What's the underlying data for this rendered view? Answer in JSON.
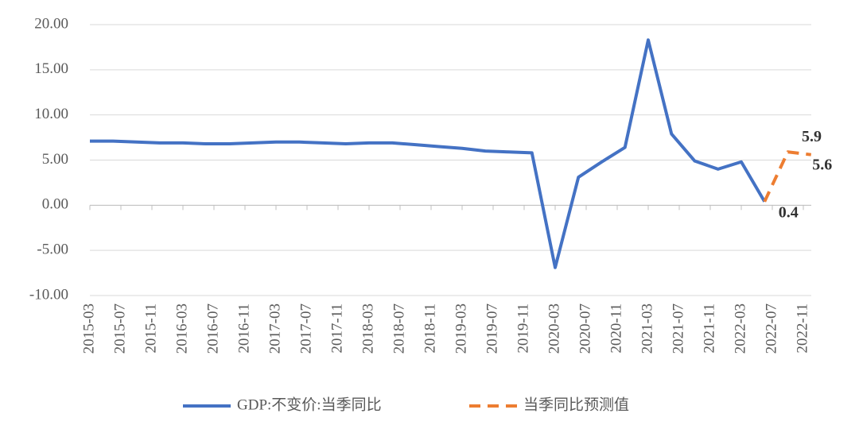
{
  "chart_data": {
    "type": "line",
    "series": [
      {
        "name": "GDP:不变价:当季同比",
        "color": "#4472c4",
        "dashed": false,
        "x": [
          "2015-03",
          "2015-06",
          "2015-09",
          "2015-12",
          "2016-03",
          "2016-06",
          "2016-09",
          "2016-12",
          "2017-03",
          "2017-06",
          "2017-09",
          "2017-12",
          "2018-03",
          "2018-06",
          "2018-09",
          "2018-12",
          "2019-03",
          "2019-06",
          "2019-09",
          "2019-12",
          "2020-03",
          "2020-06",
          "2020-09",
          "2020-12",
          "2021-03",
          "2021-06",
          "2021-09",
          "2021-12",
          "2022-03",
          "2022-06"
        ],
        "values": [
          7.1,
          7.1,
          7.0,
          6.9,
          6.9,
          6.8,
          6.8,
          6.9,
          7.0,
          7.0,
          6.9,
          6.8,
          6.9,
          6.9,
          6.7,
          6.5,
          6.3,
          6.0,
          5.9,
          5.8,
          -6.9,
          3.1,
          4.8,
          6.4,
          18.3,
          7.9,
          4.9,
          4.0,
          4.8,
          0.4
        ]
      },
      {
        "name": "当季同比预测值",
        "color": "#ed7d31",
        "dashed": true,
        "show_labels": true,
        "x": [
          "2022-06",
          "2022-09",
          "2022-12"
        ],
        "values": [
          0.4,
          5.9,
          5.6
        ]
      }
    ],
    "xticks": [
      "2015-03",
      "2015-07",
      "2015-11",
      "2016-03",
      "2016-07",
      "2016-11",
      "2017-03",
      "2017-07",
      "2017-11",
      "2018-03",
      "2018-07",
      "2018-11",
      "2019-03",
      "2019-07",
      "2019-11",
      "2020-03",
      "2020-07",
      "2020-11",
      "2021-03",
      "2021-07",
      "2021-11",
      "2022-03",
      "2022-07",
      "2022-11"
    ],
    "ylim": [
      -10,
      20
    ],
    "yticks": [
      {
        "value": -10,
        "label": "-10.00"
      },
      {
        "value": -5,
        "label": "-5.00"
      },
      {
        "value": 0,
        "label": "0.00"
      },
      {
        "value": 5,
        "label": "5.00"
      },
      {
        "value": 10,
        "label": "10.00"
      },
      {
        "value": 15,
        "label": "15.00"
      },
      {
        "value": 20,
        "label": "20.00"
      }
    ],
    "grid": true,
    "legend": "bottom"
  }
}
